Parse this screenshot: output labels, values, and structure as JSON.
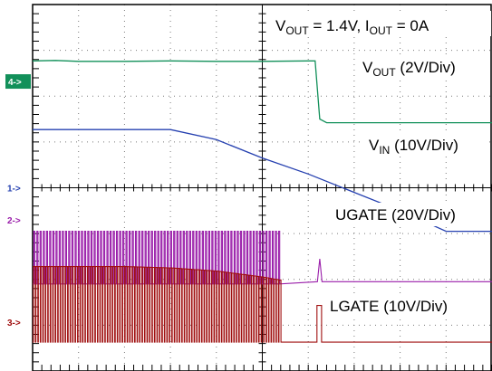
{
  "chart_data": {
    "type": "line",
    "x_divisions": 10,
    "y_divisions": 8,
    "grid": true,
    "header": {
      "v_main": "V",
      "v_sub": "OUT",
      "v_rest": " = 1.4V,  ",
      "i_main": "I",
      "i_sub": "OUT",
      "i_rest": " = 0A"
    },
    "channels": [
      {
        "id": "vout",
        "marker": "4->",
        "color": "#12905a",
        "label_main": "V",
        "label_sub": "OUT",
        "label_rest": " (2V/Div)",
        "x": [
          0,
          0.5,
          1.0,
          2.0,
          3.0,
          4.0,
          5.0,
          6.0,
          6.15,
          6.25,
          6.4,
          7.0,
          8.0,
          9.0,
          10.0
        ],
        "y": [
          6.77,
          6.78,
          6.76,
          6.76,
          6.77,
          6.76,
          6.76,
          6.77,
          6.77,
          5.5,
          5.42,
          5.42,
          5.42,
          5.42,
          5.42
        ]
      },
      {
        "id": "vin",
        "marker": "1->",
        "color": "#2540b0",
        "label_main": "V",
        "label_sub": "IN",
        "label_rest": " (10V/Div)",
        "x": [
          0,
          1.0,
          2.0,
          3.0,
          4.0,
          5.0,
          6.0,
          7.0,
          8.0,
          9.0,
          10.0
        ],
        "y": [
          5.27,
          5.27,
          5.27,
          5.27,
          5.05,
          4.65,
          4.3,
          3.9,
          3.5,
          3.05,
          3.05
        ]
      },
      {
        "id": "ugate",
        "marker": "2->",
        "color": "#9a1eaa",
        "label_main": "UGATE (20V/Div)",
        "low_level": 1.9,
        "high_level": 3.05,
        "switching_until_x": 5.4,
        "blip_x": 6.25,
        "blip_top": 2.45,
        "tail_level": 1.95
      },
      {
        "id": "lgate",
        "marker": "3->",
        "color": "#a01010",
        "label_main": "LGATE (10V/Div)",
        "low_level": 0.63,
        "high_x": [
          0,
          1.0,
          2.0,
          3.0,
          4.0,
          5.0,
          5.4
        ],
        "high_y": [
          2.28,
          2.28,
          2.28,
          2.25,
          2.18,
          2.05,
          1.98
        ],
        "switching_until_x": 5.4,
        "blip_x": 6.25,
        "blip_top": 1.43,
        "tail_level": 0.63
      }
    ]
  }
}
